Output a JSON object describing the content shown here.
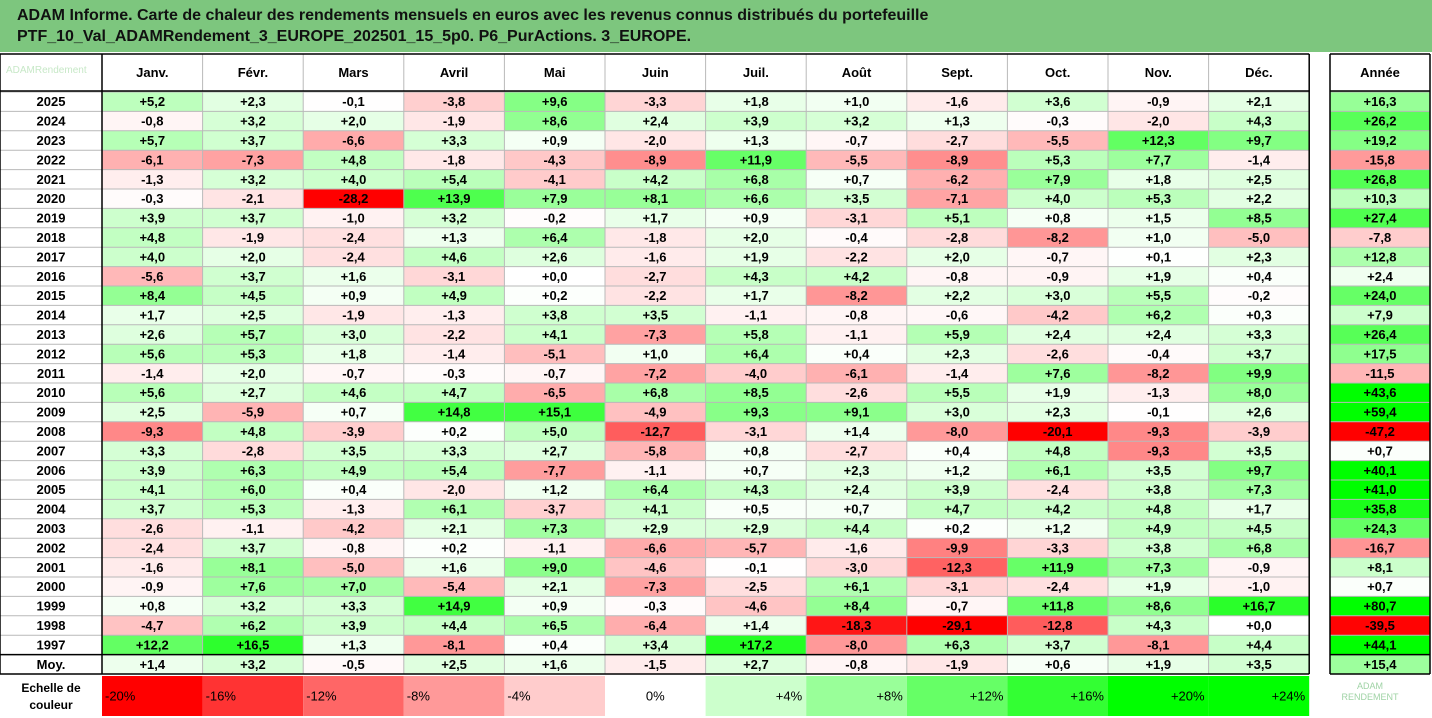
{
  "title_lines": [
    "ADAM Informe. Carte de chaleur des rendements mensuels en euros avec les revenus connus distribués du portefeuille",
    "PTF_10_Val_ADAMRendement_3_EUROPE_202501_15_5p0. P6_PurActions. 3_EUROPE."
  ],
  "watermark_top": "ADAMRendement",
  "watermark_bottom": [
    "ADAM",
    "RENDEMENT"
  ],
  "chart_data": {
    "type": "heatmap",
    "columns": [
      "Janv.",
      "Févr.",
      "Mars",
      "Avril",
      "Mai",
      "Juin",
      "Juil.",
      "Août",
      "Sept.",
      "Oct.",
      "Nov.",
      "Déc."
    ],
    "annual_header": "Année",
    "years": [
      "2025",
      "2024",
      "2023",
      "2022",
      "2021",
      "2020",
      "2019",
      "2018",
      "2017",
      "2016",
      "2015",
      "2014",
      "2013",
      "2012",
      "2011",
      "2010",
      "2009",
      "2008",
      "2007",
      "2006",
      "2005",
      "2004",
      "2003",
      "2002",
      "2001",
      "2000",
      "1999",
      "1998",
      "1997"
    ],
    "monthly": [
      [
        "+5,2",
        "+2,3",
        "-0,1",
        "-3,8",
        "+9,6",
        "-3,3",
        "+1,8",
        "+1,0",
        "-1,6",
        "+3,6",
        "-0,9",
        "+2,1"
      ],
      [
        "-0,8",
        "+3,2",
        "+2,0",
        "-1,9",
        "+8,6",
        "+2,4",
        "+3,9",
        "+3,2",
        "+1,3",
        "-0,3",
        "-2,0",
        "+4,3"
      ],
      [
        "+5,7",
        "+3,7",
        "-6,6",
        "+3,3",
        "+0,9",
        "-2,0",
        "+1,3",
        "-0,7",
        "-2,7",
        "-5,5",
        "+12,3",
        "+9,7"
      ],
      [
        "-6,1",
        "-7,3",
        "+4,8",
        "-1,8",
        "-4,3",
        "-8,9",
        "+11,9",
        "-5,5",
        "-8,9",
        "+5,3",
        "+7,7",
        "-1,4"
      ],
      [
        "-1,3",
        "+3,2",
        "+4,0",
        "+5,4",
        "-4,1",
        "+4,2",
        "+6,8",
        "+0,7",
        "-6,2",
        "+7,9",
        "+1,8",
        "+2,5"
      ],
      [
        "-0,3",
        "-2,1",
        "-28,2",
        "+13,9",
        "+7,9",
        "+8,1",
        "+6,6",
        "+3,5",
        "-7,1",
        "+4,0",
        "+5,3",
        "+2,2"
      ],
      [
        "+3,9",
        "+3,7",
        "-1,0",
        "+3,2",
        "-0,2",
        "+1,7",
        "+0,9",
        "-3,1",
        "+5,1",
        "+0,8",
        "+1,5",
        "+8,5"
      ],
      [
        "+4,8",
        "-1,9",
        "-2,4",
        "+1,3",
        "+6,4",
        "-1,8",
        "+2,0",
        "-0,4",
        "-2,8",
        "-8,2",
        "+1,0",
        "-5,0"
      ],
      [
        "+4,0",
        "+2,0",
        "-2,4",
        "+4,6",
        "+2,6",
        "-1,6",
        "+1,9",
        "-2,2",
        "+2,0",
        "-0,7",
        "+0,1",
        "+2,3"
      ],
      [
        "-5,6",
        "+3,7",
        "+1,6",
        "-3,1",
        "+0,0",
        "-2,7",
        "+4,3",
        "+4,2",
        "-0,8",
        "-0,9",
        "+1,9",
        "+0,4"
      ],
      [
        "+8,4",
        "+4,5",
        "+0,9",
        "+4,9",
        "+0,2",
        "-2,2",
        "+1,7",
        "-8,2",
        "+2,2",
        "+3,0",
        "+5,5",
        "-0,2"
      ],
      [
        "+1,7",
        "+2,5",
        "-1,9",
        "-1,3",
        "+3,8",
        "+3,5",
        "-1,1",
        "-0,8",
        "-0,6",
        "-4,2",
        "+6,2",
        "+0,3"
      ],
      [
        "+2,6",
        "+5,7",
        "+3,0",
        "-2,2",
        "+4,1",
        "-7,3",
        "+5,8",
        "-1,1",
        "+5,9",
        "+2,4",
        "+2,4",
        "+3,3"
      ],
      [
        "+5,6",
        "+5,3",
        "+1,8",
        "-1,4",
        "-5,1",
        "+1,0",
        "+6,4",
        "+0,4",
        "+2,3",
        "-2,6",
        "-0,4",
        "+3,7"
      ],
      [
        "-1,4",
        "+2,0",
        "-0,7",
        "-0,3",
        "-0,7",
        "-7,2",
        "-4,0",
        "-6,1",
        "-1,4",
        "+7,6",
        "-8,2",
        "+9,9"
      ],
      [
        "+5,6",
        "+2,7",
        "+4,6",
        "+4,7",
        "-6,5",
        "+6,8",
        "+8,5",
        "-2,6",
        "+5,5",
        "+1,9",
        "-1,3",
        "+8,0"
      ],
      [
        "+2,5",
        "-5,9",
        "+0,7",
        "+14,8",
        "+15,1",
        "-4,9",
        "+9,3",
        "+9,1",
        "+3,0",
        "+2,3",
        "-0,1",
        "+2,6"
      ],
      [
        "-9,3",
        "+4,8",
        "-3,9",
        "+0,2",
        "+5,0",
        "-12,7",
        "-3,1",
        "+1,4",
        "-8,0",
        "-20,1",
        "-9,3",
        "-3,9"
      ],
      [
        "+3,3",
        "-2,8",
        "+3,5",
        "+3,3",
        "+2,7",
        "-5,8",
        "+0,8",
        "-2,7",
        "+0,4",
        "+4,8",
        "-9,3",
        "+3,5"
      ],
      [
        "+3,9",
        "+6,3",
        "+4,9",
        "+5,4",
        "-7,7",
        "-1,1",
        "+0,7",
        "+2,3",
        "+1,2",
        "+6,1",
        "+3,5",
        "+9,7"
      ],
      [
        "+4,1",
        "+6,0",
        "+0,4",
        "-2,0",
        "+1,2",
        "+6,4",
        "+4,3",
        "+2,4",
        "+3,9",
        "-2,4",
        "+3,8",
        "+7,3"
      ],
      [
        "+3,7",
        "+5,3",
        "-1,3",
        "+6,1",
        "-3,7",
        "+4,1",
        "+0,5",
        "+0,7",
        "+4,7",
        "+4,2",
        "+4,8",
        "+1,7"
      ],
      [
        "-2,6",
        "-1,1",
        "-4,2",
        "+2,1",
        "+7,3",
        "+2,9",
        "+2,9",
        "+4,4",
        "+0,2",
        "+1,2",
        "+4,9",
        "+4,5"
      ],
      [
        "-2,4",
        "+3,7",
        "-0,8",
        "+0,2",
        "-1,1",
        "-6,6",
        "-5,7",
        "-1,6",
        "-9,9",
        "-3,3",
        "+3,8",
        "+6,8"
      ],
      [
        "-1,6",
        "+8,1",
        "-5,0",
        "+1,6",
        "+9,0",
        "-4,6",
        "-0,1",
        "-3,0",
        "-12,3",
        "+11,9",
        "+7,3",
        "-0,9"
      ],
      [
        "-0,9",
        "+7,6",
        "+7,0",
        "-5,4",
        "+2,1",
        "-7,3",
        "-2,5",
        "+6,1",
        "-3,1",
        "-2,4",
        "+1,9",
        "-1,0"
      ],
      [
        "+0,8",
        "+3,2",
        "+3,3",
        "+14,9",
        "+0,9",
        "-0,3",
        "-4,6",
        "+8,4",
        "-0,7",
        "+11,8",
        "+8,6",
        "+16,7"
      ],
      [
        "-4,7",
        "+6,2",
        "+3,9",
        "+4,4",
        "+6,5",
        "-6,4",
        "+1,4",
        "-18,3",
        "-29,1",
        "-12,8",
        "+4,3",
        "+0,0"
      ],
      [
        "+12,2",
        "+16,5",
        "+1,3",
        "-8,1",
        "+0,4",
        "+3,4",
        "+17,2",
        "-8,0",
        "+6,3",
        "+3,7",
        "-8,1",
        "+4,4"
      ]
    ],
    "annual": [
      "+16,3",
      "+26,2",
      "+19,2",
      "-15,8",
      "+26,8",
      "+10,3",
      "+27,4",
      "-7,8",
      "+12,8",
      "+2,4",
      "+24,0",
      "+7,9",
      "+26,4",
      "+17,5",
      "-11,5",
      "+43,6",
      "+59,4",
      "-47,2",
      "+0,7",
      "+40,1",
      "+41,0",
      "+35,8",
      "+24,3",
      "-16,7",
      "+8,1",
      "+0,7",
      "+80,7",
      "-39,5",
      "+44,1"
    ],
    "average_label": "Moy.",
    "average_monthly": [
      "+1,4",
      "+3,2",
      "-0,5",
      "+2,5",
      "+1,6",
      "-1,5",
      "+2,7",
      "-0,8",
      "-1,9",
      "+0,6",
      "+1,9",
      "+3,5"
    ],
    "average_annual": "+15,4",
    "scale_label": [
      "Echelle de",
      "couleur"
    ],
    "scale": [
      {
        "label": "-20%",
        "value": -20,
        "align": "left"
      },
      {
        "label": "-16%",
        "value": -16,
        "align": "left"
      },
      {
        "label": "-12%",
        "value": -12,
        "align": "left"
      },
      {
        "label": "-8%",
        "value": -8,
        "align": "left"
      },
      {
        "label": "-4%",
        "value": -4,
        "align": "left"
      },
      {
        "label": "0%",
        "value": 0,
        "align": "center"
      },
      {
        "label": "+4%",
        "value": 4,
        "align": "right"
      },
      {
        "label": "+8%",
        "value": 8,
        "align": "right"
      },
      {
        "label": "+12%",
        "value": 12,
        "align": "right"
      },
      {
        "label": "+16%",
        "value": 16,
        "align": "right"
      },
      {
        "label": "+20%",
        "value": 20,
        "align": "right"
      },
      {
        "label": "+24%",
        "value": 24,
        "align": "right"
      }
    ],
    "monthly_color_max": 20,
    "annual_color_max": 40,
    "colors": {
      "neg_max": "#ff0000",
      "pos_max": "#00ff00",
      "zero": "#ffffff",
      "title_band": "#7dc67e"
    }
  }
}
